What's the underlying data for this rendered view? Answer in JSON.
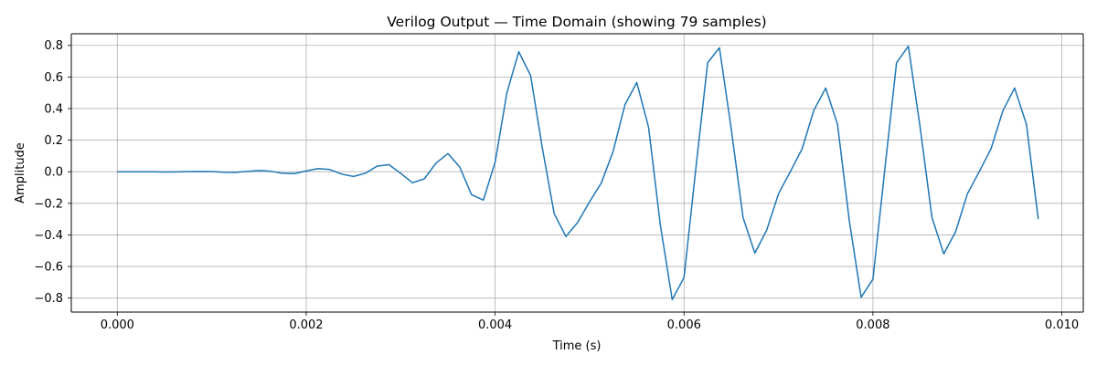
{
  "chart_data": {
    "type": "line",
    "title": "Verilog Output — Time Domain (showing 79 samples)",
    "xlabel": "Time (s)",
    "ylabel": "Amplitude",
    "xlim": [
      -0.000487,
      0.010227
    ],
    "ylim": [
      -0.8885,
      0.8735
    ],
    "grid": true,
    "line_color": "#1f77b4",
    "x_ticks": [
      {
        "value": 0.0,
        "label": "0.000"
      },
      {
        "value": 0.002,
        "label": "0.002"
      },
      {
        "value": 0.004,
        "label": "0.004"
      },
      {
        "value": 0.006,
        "label": "0.006"
      },
      {
        "value": 0.008,
        "label": "0.008"
      },
      {
        "value": 0.01,
        "label": "0.010"
      }
    ],
    "y_ticks": [
      {
        "value": -0.8,
        "label": "−0.8"
      },
      {
        "value": -0.6,
        "label": "−0.6"
      },
      {
        "value": -0.4,
        "label": "−0.4"
      },
      {
        "value": -0.2,
        "label": "−0.2"
      },
      {
        "value": 0.0,
        "label": "0.0"
      },
      {
        "value": 0.2,
        "label": "0.2"
      },
      {
        "value": 0.4,
        "label": "0.4"
      },
      {
        "value": 0.6,
        "label": "0.6"
      },
      {
        "value": 0.8,
        "label": "0.8"
      }
    ],
    "series": [
      {
        "name": "Verilog Output",
        "x_start": 0.0,
        "x_step": 0.000125,
        "values": [
          0.0,
          0.0,
          0.0,
          0.0,
          -0.002,
          -0.001,
          0.001,
          0.002,
          0.001,
          -0.003,
          -0.004,
          0.002,
          0.008,
          0.003,
          -0.01,
          -0.012,
          0.005,
          0.02,
          0.014,
          -0.015,
          -0.03,
          -0.01,
          0.035,
          0.045,
          -0.01,
          -0.07,
          -0.045,
          0.055,
          0.115,
          0.03,
          -0.145,
          -0.18,
          0.06,
          0.5,
          0.76,
          0.61,
          0.15,
          -0.265,
          -0.41,
          -0.32,
          -0.19,
          -0.07,
          0.13,
          0.425,
          0.565,
          0.28,
          -0.34,
          -0.81,
          -0.67,
          0.02,
          0.69,
          0.785,
          0.27,
          -0.29,
          -0.515,
          -0.37,
          -0.14,
          0.0,
          0.145,
          0.39,
          0.53,
          0.3,
          -0.31,
          -0.795,
          -0.68,
          0.01,
          0.69,
          0.795,
          0.28,
          -0.29,
          -0.52,
          -0.38,
          -0.14,
          0.0,
          0.145,
          0.385,
          0.53,
          0.3,
          -0.3
        ]
      }
    ]
  }
}
